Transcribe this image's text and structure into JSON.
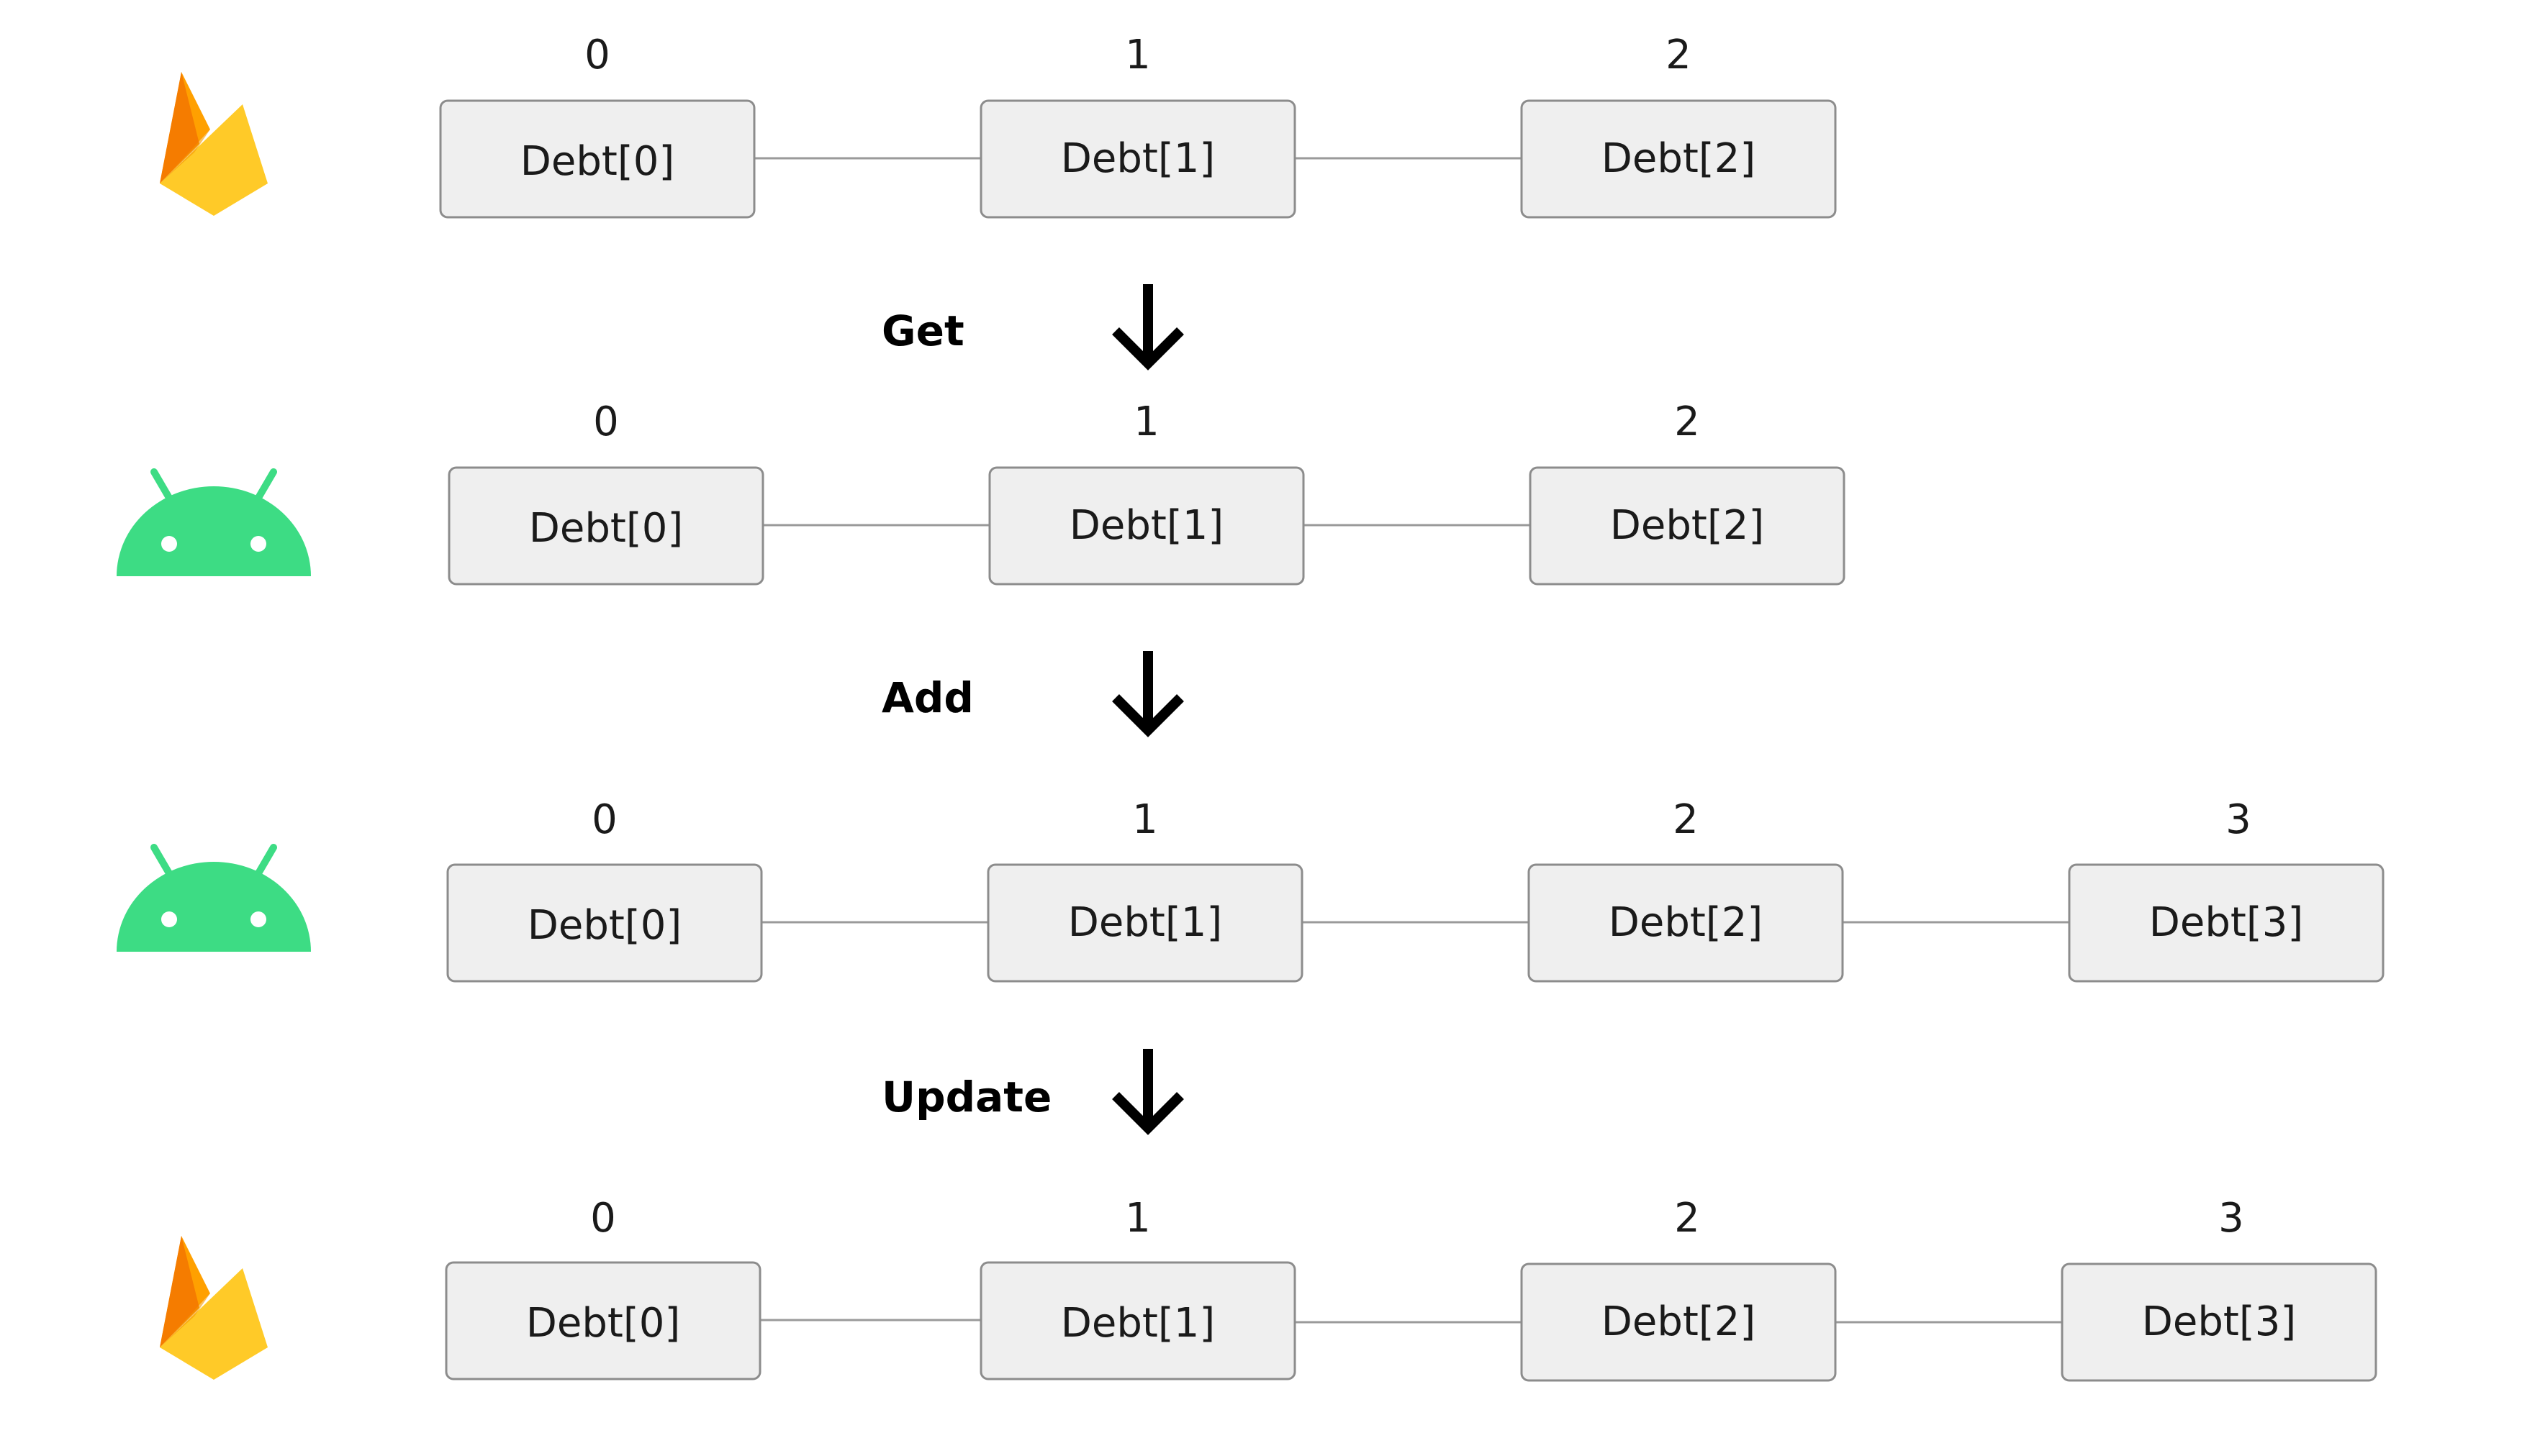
{
  "colors": {
    "android_green": "#3ddc84",
    "firebase_yellow": "#ffca28",
    "firebase_orange": "#ffa000",
    "firebase_dark_orange": "#f57c00",
    "box_fill": "#efefef",
    "box_stroke": "#8c8c8c"
  },
  "rows": [
    {
      "platform_icon": "firebase-icon",
      "items": [
        {
          "index": "0",
          "label": "Debt[0]"
        },
        {
          "index": "1",
          "label": "Debt[1]"
        },
        {
          "index": "2",
          "label": "Debt[2]"
        }
      ]
    },
    {
      "platform_icon": "android-icon",
      "items": [
        {
          "index": "0",
          "label": "Debt[0]"
        },
        {
          "index": "1",
          "label": "Debt[1]"
        },
        {
          "index": "2",
          "label": "Debt[2]"
        }
      ]
    },
    {
      "platform_icon": "android-icon",
      "items": [
        {
          "index": "0",
          "label": "Debt[0]"
        },
        {
          "index": "1",
          "label": "Debt[1]"
        },
        {
          "index": "2",
          "label": "Debt[2]"
        },
        {
          "index": "3",
          "label": "Debt[3]"
        }
      ]
    },
    {
      "platform_icon": "firebase-icon",
      "items": [
        {
          "index": "0",
          "label": "Debt[0]"
        },
        {
          "index": "1",
          "label": "Debt[1]"
        },
        {
          "index": "2",
          "label": "Debt[2]"
        },
        {
          "index": "3",
          "label": "Debt[3]"
        }
      ]
    }
  ],
  "steps": [
    {
      "label": "Get",
      "arrow_icon": "arrow-down-icon"
    },
    {
      "label": "Add",
      "arrow_icon": "arrow-down-icon"
    },
    {
      "label": "Update",
      "arrow_icon": "arrow-down-icon"
    }
  ]
}
